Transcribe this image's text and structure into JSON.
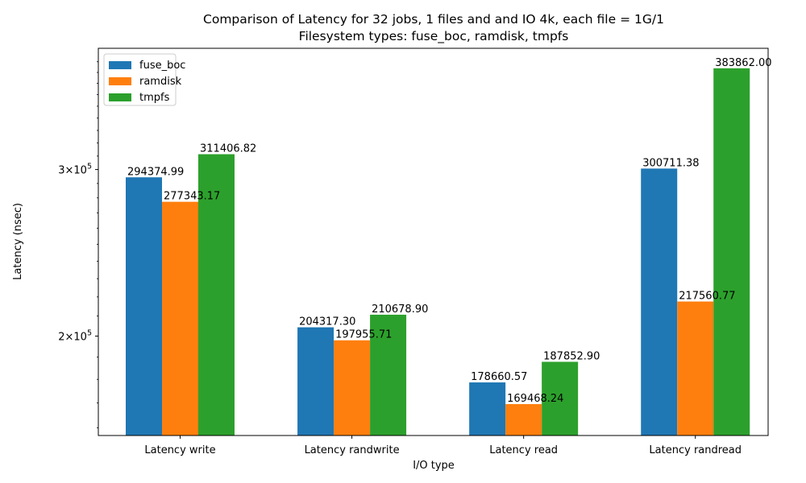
{
  "chart_data": {
    "type": "bar",
    "title": "Comparison of Latency for 32 jobs, 1 files and  and IO 4k, each file = 1G/1",
    "subtitle": "Filesystem types: fuse_boc, ramdisk, tmpfs",
    "xlabel": "I/O type",
    "ylabel": "Latency (nsec)",
    "yscale": "log",
    "ylim": [
      157000,
      403000
    ],
    "yticks": [
      {
        "value": 200000,
        "label_base": "2×10",
        "label_exp": "5"
      },
      {
        "value": 300000,
        "label_base": "3×10",
        "label_exp": "5"
      }
    ],
    "categories": [
      "Latency write",
      "Latency randwrite",
      "Latency read",
      "Latency randread"
    ],
    "series": [
      {
        "name": "fuse_boc",
        "color": "#1f77b4",
        "values": [
          294374.99,
          204317.3,
          178660.57,
          300711.38
        ],
        "value_labels": [
          "294374.99",
          "204317.30",
          "178660.57",
          "300711.38"
        ]
      },
      {
        "name": "ramdisk",
        "color": "#ff7f0e",
        "values": [
          277343.17,
          197955.71,
          169468.24,
          217560.77
        ],
        "value_labels": [
          "277343.17",
          "197955.71",
          "169468.24",
          "217560.77"
        ]
      },
      {
        "name": "tmpfs",
        "color": "#2ca02c",
        "values": [
          311406.82,
          210678.9,
          187852.9,
          383862.0
        ],
        "value_labels": [
          "311406.82",
          "210678.90",
          "187852.90",
          "383862.00"
        ]
      }
    ],
    "legend_position": "top-left",
    "grid": false
  }
}
